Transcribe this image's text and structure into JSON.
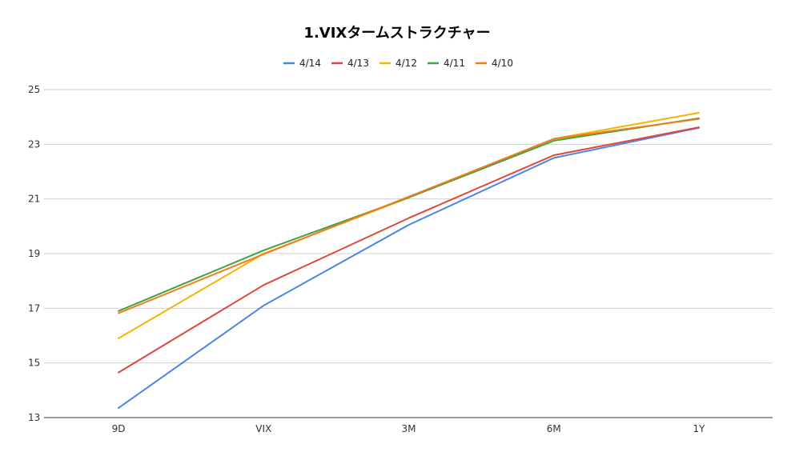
{
  "chart_data": {
    "type": "line",
    "title": "1.VIXタームストラクチャー",
    "xlabel": "",
    "ylabel": "",
    "categories": [
      "9D",
      "VIX",
      "3M",
      "6M",
      "1Y"
    ],
    "ylim": [
      13,
      25
    ],
    "yticks": [
      "13",
      "15",
      "17",
      "19",
      "21",
      "23",
      "25"
    ],
    "grid": true,
    "legend_position": "top",
    "series": [
      {
        "name": "4/14",
        "color": "#4a86e8",
        "values": [
          13.35,
          17.1,
          20.05,
          22.5,
          23.6
        ]
      },
      {
        "name": "4/13",
        "color": "#e0463c",
        "values": [
          14.65,
          17.85,
          20.3,
          22.6,
          23.62
        ]
      },
      {
        "name": "4/12",
        "color": "#f4b400",
        "values": [
          15.9,
          19.0,
          21.05,
          23.2,
          24.15
        ]
      },
      {
        "name": "4/11",
        "color": "#43a047",
        "values": [
          16.9,
          19.12,
          21.05,
          23.13,
          23.95
        ]
      },
      {
        "name": "4/10",
        "color": "#f07d1a",
        "values": [
          16.82,
          18.98,
          21.08,
          23.2,
          23.93
        ]
      }
    ]
  }
}
